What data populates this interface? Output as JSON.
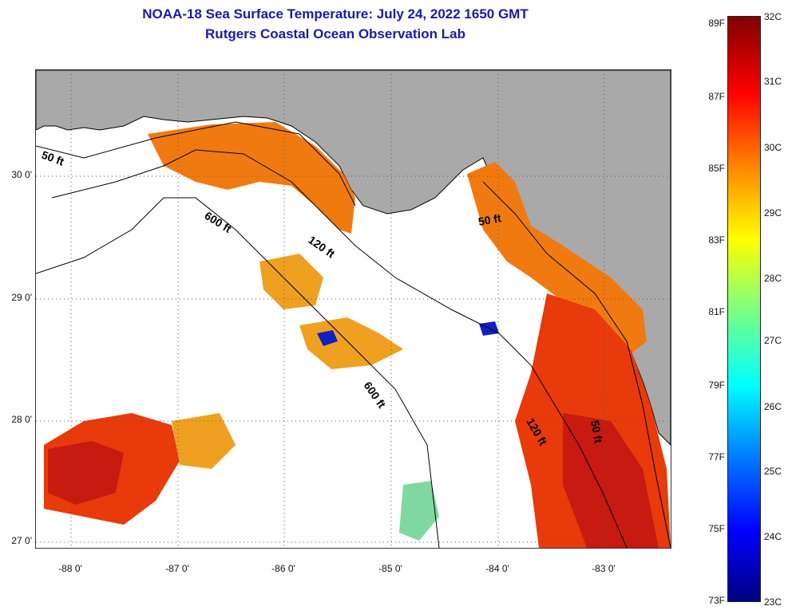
{
  "header": {
    "title": "NOAA-18 Sea Surface Temperature:  July 24, 2022 1650 GMT",
    "subtitle": "Rutgers Coastal Ocean Observation Lab"
  },
  "map": {
    "lon_range": [
      -88.33,
      -82.5
    ],
    "lat_range": [
      26.95,
      30.85
    ],
    "lon_ticks": [
      {
        "value": -88,
        "label": "-88 0'"
      },
      {
        "value": -87,
        "label": "-87 0'"
      },
      {
        "value": -86,
        "label": "-86 0'"
      },
      {
        "value": -85,
        "label": "-85 0'"
      },
      {
        "value": -84,
        "label": "-84 0'"
      },
      {
        "value": -83,
        "label": "-83 0'"
      }
    ],
    "lat_ticks": [
      {
        "value": 30,
        "label": "30 0'"
      },
      {
        "value": 29,
        "label": "29 0'"
      },
      {
        "value": 28,
        "label": "28 0'"
      },
      {
        "value": 27,
        "label": "27 0'"
      }
    ],
    "isobath_labels": {
      "west_50": "50 ft",
      "west_600": "600 ft",
      "west_120": "120 ft",
      "center_600": "600 ft",
      "east_50_north": "50 ft",
      "east_120": "120 ft",
      "east_50_south": "50 ft"
    },
    "colors": {
      "land": "#a9a9a9",
      "cloud": "#ffffff",
      "warm": "#f07a10",
      "hot": "#e83a0a",
      "very_hot": "#c81a10",
      "mild": "#f0a020",
      "cool": "#7fd8a0",
      "cold": "#1020c0"
    }
  },
  "colorbar": {
    "fahrenheit": [
      "89F",
      "87F",
      "85F",
      "83F",
      "81F",
      "79F",
      "77F",
      "75F",
      "73F"
    ],
    "celsius": [
      "32C",
      "31C",
      "30C",
      "29C",
      "28C",
      "27C",
      "26C",
      "25C",
      "24C",
      "23C"
    ]
  }
}
